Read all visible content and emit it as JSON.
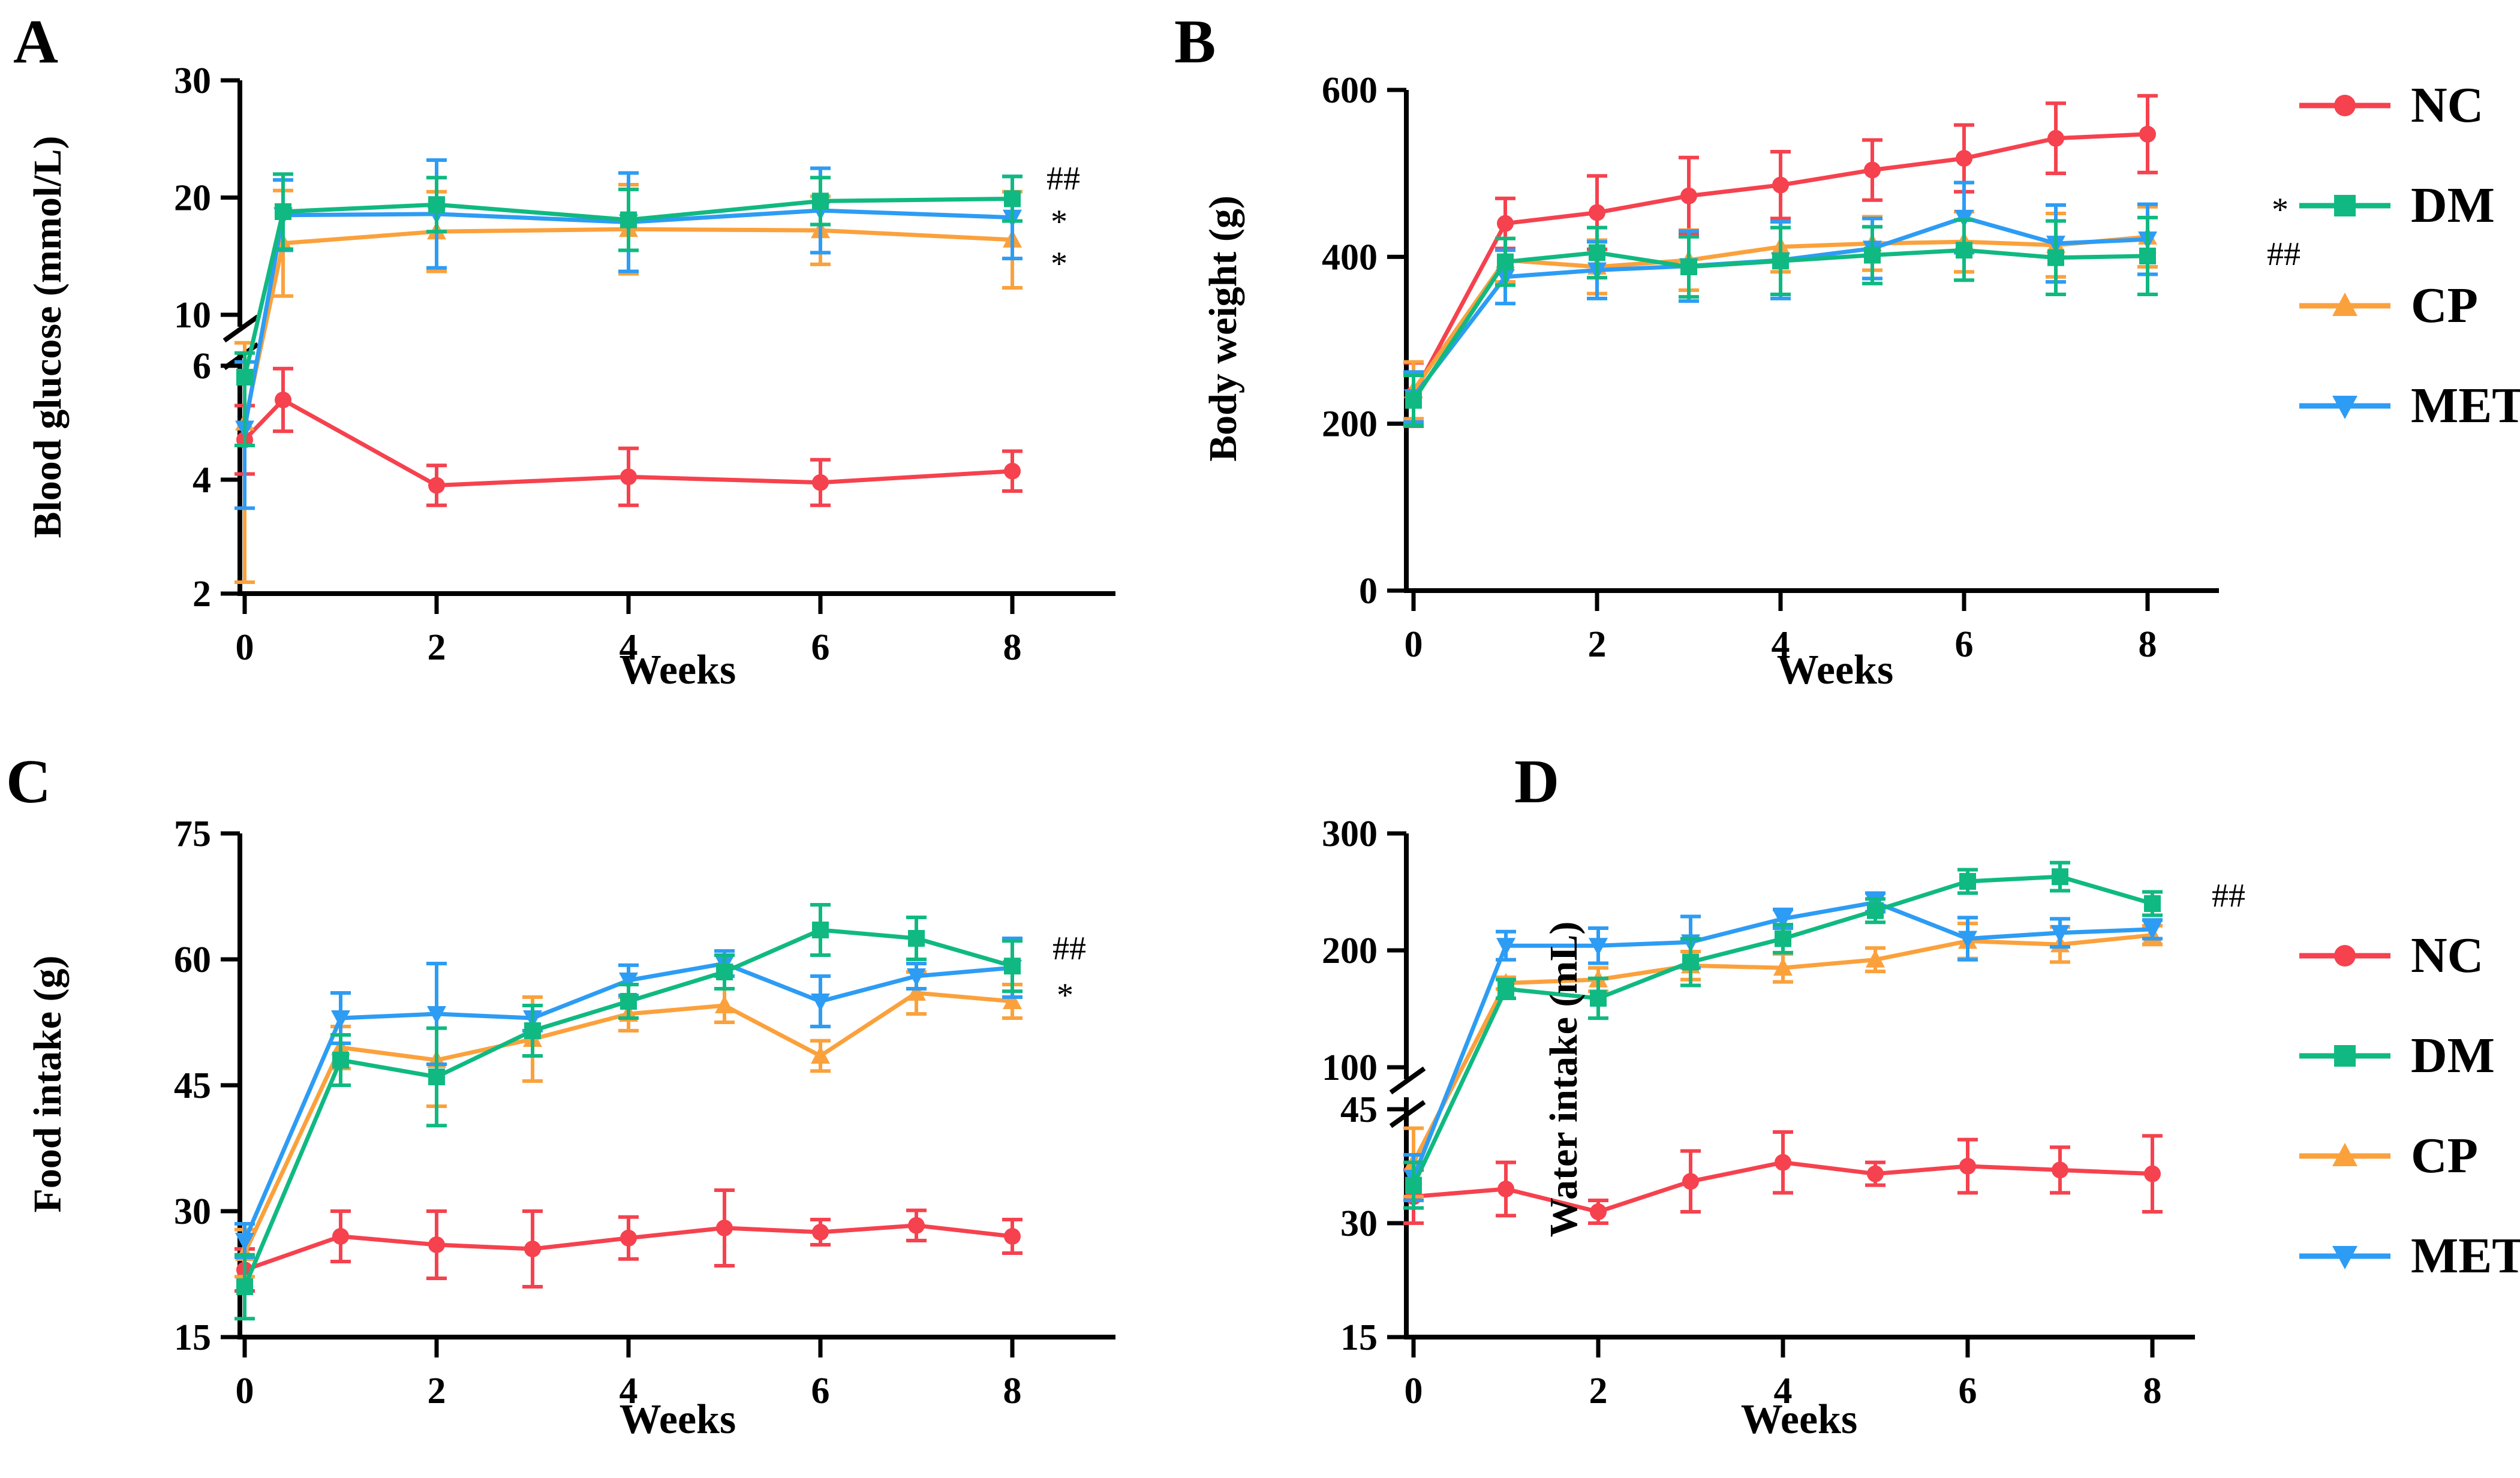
{
  "figure": {
    "background": "#ffffff",
    "legend_position": "right"
  },
  "colors": {
    "NC": "#F5424E",
    "DM": "#10B981",
    "CP": "#FBA13C",
    "MET": "#2D9CF4",
    "axis": "#000000"
  },
  "legend": {
    "items": [
      {
        "label": "NC",
        "marker": "circle-icon",
        "color": "#F5424E"
      },
      {
        "label": "DM",
        "marker": "square-icon",
        "color": "#10B981"
      },
      {
        "label": "CP",
        "marker": "triangle-up-icon",
        "color": "#FBA13C"
      },
      {
        "label": "MET",
        "marker": "triangle-down-icon",
        "color": "#2D9CF4"
      }
    ]
  },
  "chart_data": [
    {
      "id": "A",
      "panel_label": "A",
      "type": "line",
      "title": "",
      "xlabel": "Weeks",
      "ylabel": "Blood glucose (mmol/L)",
      "x_ticks": [
        0,
        2,
        4,
        6,
        8
      ],
      "x": [
        0,
        0.4,
        2,
        4,
        6,
        8
      ],
      "y_axis": {
        "broken": true,
        "segments": [
          {
            "range": [
              2,
              6
            ],
            "ticks": [
              2,
              4,
              6
            ]
          },
          {
            "range": [
              10,
              30
            ],
            "ticks": [
              10,
              20,
              30
            ]
          }
        ]
      },
      "grid": false,
      "annotations": [
        "##",
        "*",
        "*"
      ],
      "series": [
        {
          "name": "NC",
          "values": [
            4.7,
            5.4,
            3.9,
            4.05,
            3.95,
            4.15
          ],
          "errors": [
            0.6,
            0.55,
            0.35,
            0.5,
            0.4,
            0.35
          ]
        },
        {
          "name": "CP",
          "values": [
            5.0,
            16.1,
            17.1,
            17.3,
            17.2,
            16.4
          ],
          "errors": [
            2.8,
            4.5,
            3.4,
            3.8,
            2.9,
            4.1
          ]
        },
        {
          "name": "MET",
          "values": [
            4.9,
            18.5,
            18.6,
            17.9,
            18.9,
            18.3
          ],
          "errors": [
            1.4,
            3.0,
            4.6,
            4.2,
            3.6,
            3.5
          ]
        },
        {
          "name": "DM",
          "values": [
            5.8,
            18.8,
            19.4,
            18.1,
            19.7,
            19.9
          ],
          "errors": [
            1.2,
            3.2,
            2.3,
            2.6,
            2.0,
            1.9
          ]
        }
      ]
    },
    {
      "id": "B",
      "panel_label": "B",
      "type": "line",
      "title": "",
      "xlabel": "Weeks",
      "ylabel": "Body weight (g)",
      "x_ticks": [
        0,
        2,
        4,
        6,
        8
      ],
      "x": [
        0,
        1,
        2,
        3,
        4,
        5,
        6,
        7,
        8
      ],
      "y_axis": {
        "broken": false,
        "segments": [
          {
            "range": [
              0,
              600
            ],
            "ticks": [
              0,
              200,
              400,
              600
            ]
          }
        ]
      },
      "grid": false,
      "annotations": [
        "*",
        "##"
      ],
      "series": [
        {
          "name": "NC",
          "values": [
            235,
            440,
            453,
            473,
            486,
            504,
            518,
            542,
            547
          ],
          "errors": [
            38,
            30,
            44,
            46,
            40,
            36,
            40,
            42,
            46
          ]
        },
        {
          "name": "CP",
          "values": [
            240,
            396,
            388,
            396,
            412,
            416,
            418,
            414,
            424
          ],
          "errors": [
            34,
            26,
            32,
            36,
            30,
            32,
            36,
            38,
            36
          ]
        },
        {
          "name": "MET",
          "values": [
            232,
            376,
            384,
            389,
            396,
            410,
            447,
            416,
            421
          ],
          "errors": [
            30,
            32,
            34,
            42,
            46,
            36,
            42,
            46,
            42
          ]
        },
        {
          "name": "DM",
          "values": [
            228,
            394,
            405,
            388,
            395,
            402,
            408,
            399,
            401
          ],
          "errors": [
            30,
            28,
            30,
            36,
            40,
            34,
            36,
            44,
            46
          ]
        }
      ]
    },
    {
      "id": "C",
      "panel_label": "C",
      "type": "line",
      "title": "",
      "xlabel": "Weeks",
      "ylabel": "Food intake (g)",
      "x_ticks": [
        0,
        2,
        4,
        6,
        8
      ],
      "x": [
        0,
        1,
        2,
        3,
        4,
        5,
        6,
        7,
        8
      ],
      "y_axis": {
        "broken": false,
        "segments": [
          {
            "range": [
              15,
              75
            ],
            "ticks": [
              15,
              30,
              45,
              60,
              75
            ]
          }
        ]
      },
      "grid": false,
      "annotations": [
        "##",
        "*"
      ],
      "series": [
        {
          "name": "NC",
          "values": [
            23,
            27,
            26,
            25.5,
            26.8,
            28,
            27.5,
            28.3,
            27
          ],
          "errors": [
            2.5,
            3,
            4,
            4.5,
            2.5,
            4.5,
            1.5,
            1.8,
            2
          ]
        },
        {
          "name": "CP",
          "values": [
            25,
            49.5,
            48,
            50.5,
            53.5,
            54.5,
            48.5,
            56,
            55
          ],
          "errors": [
            2.8,
            2.5,
            5.5,
            5,
            2,
            2,
            1.8,
            2.5,
            2
          ]
        },
        {
          "name": "MET",
          "values": [
            26.5,
            53,
            53.5,
            53,
            57.5,
            59.5,
            55,
            58,
            59
          ],
          "errors": [
            2,
            3,
            6,
            1.5,
            1.8,
            1.5,
            3,
            1.5,
            3.5
          ]
        },
        {
          "name": "DM",
          "values": [
            21,
            48,
            46,
            51.5,
            55,
            58.5,
            63.5,
            62.5,
            59.2
          ],
          "errors": [
            3.8,
            3,
            5.8,
            3,
            2,
            2,
            3,
            2.5,
            3
          ]
        }
      ]
    },
    {
      "id": "D",
      "panel_label": "D",
      "type": "line",
      "title": "",
      "xlabel": "Weeks",
      "ylabel": "Water intake (mL)",
      "x_ticks": [
        0,
        2,
        4,
        6,
        8
      ],
      "x": [
        0,
        1,
        2,
        3,
        4,
        5,
        6,
        7,
        8
      ],
      "y_axis": {
        "broken": true,
        "segments": [
          {
            "range": [
              15,
              45
            ],
            "ticks": [
              15,
              30,
              45
            ]
          },
          {
            "range": [
              100,
              300
            ],
            "ticks": [
              100,
              200,
              300
            ]
          }
        ]
      },
      "grid": false,
      "annotations": [
        "##"
      ],
      "series": [
        {
          "name": "NC",
          "values": [
            33.5,
            34.5,
            31.5,
            35.5,
            38,
            36.5,
            37.5,
            37,
            36.5
          ],
          "errors": [
            3.5,
            3.5,
            1.5,
            4,
            4,
            1.5,
            3.5,
            3,
            5
          ]
        },
        {
          "name": "CP",
          "values": [
            38,
            172,
            175,
            187,
            185,
            192,
            208,
            205,
            213
          ],
          "errors": [
            4.5,
            5,
            10,
            12,
            12,
            10,
            15,
            15,
            8
          ]
        },
        {
          "name": "MET",
          "values": [
            36,
            204,
            204,
            207,
            227,
            241,
            210,
            215,
            218
          ],
          "errors": [
            3,
            12,
            15,
            22,
            8,
            8,
            18,
            12,
            8
          ]
        },
        {
          "name": "DM",
          "values": [
            35,
            167,
            159,
            190,
            210,
            234,
            259,
            263,
            240
          ],
          "errors": [
            3,
            8,
            17,
            20,
            12,
            10,
            10,
            12,
            10
          ]
        }
      ]
    }
  ]
}
